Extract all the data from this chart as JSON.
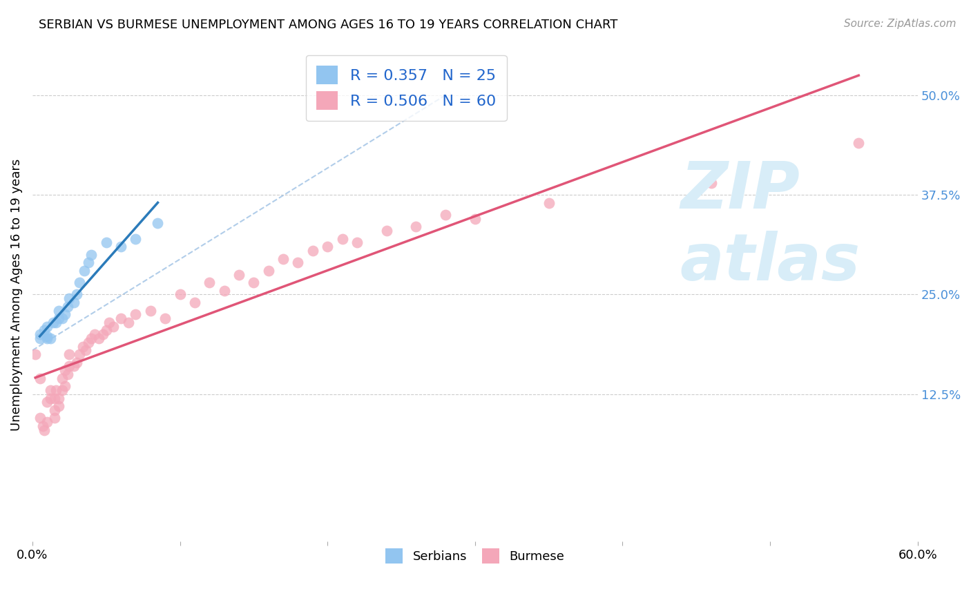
{
  "title": "SERBIAN VS BURMESE UNEMPLOYMENT AMONG AGES 16 TO 19 YEARS CORRELATION CHART",
  "source": "Source: ZipAtlas.com",
  "ylabel": "Unemployment Among Ages 16 to 19 years",
  "xlim": [
    0.0,
    0.6
  ],
  "ylim": [
    -0.06,
    0.56
  ],
  "x_tick_positions": [
    0.0,
    0.1,
    0.2,
    0.3,
    0.4,
    0.5,
    0.6
  ],
  "x_tick_labels": [
    "0.0%",
    "",
    "",
    "",
    "",
    "",
    "60.0%"
  ],
  "y_tick_vals_right": [
    0.5,
    0.375,
    0.25,
    0.125
  ],
  "y_tick_labels_right": [
    "50.0%",
    "37.5%",
    "25.0%",
    "12.5%"
  ],
  "serbian_R": 0.357,
  "serbian_N": 25,
  "burmese_R": 0.506,
  "burmese_N": 60,
  "serbian_color": "#92c5f0",
  "burmese_color": "#f4a7b9",
  "serbian_line_color": "#2b7bba",
  "burmese_line_color": "#e05577",
  "ref_line_color": "#90b8e0",
  "watermark_color": "#d8edf8",
  "serbian_x": [
    0.005,
    0.005,
    0.008,
    0.01,
    0.01,
    0.01,
    0.012,
    0.014,
    0.016,
    0.018,
    0.018,
    0.02,
    0.022,
    0.024,
    0.025,
    0.028,
    0.03,
    0.032,
    0.035,
    0.038,
    0.04,
    0.05,
    0.06,
    0.07,
    0.085
  ],
  "serbian_y": [
    0.195,
    0.2,
    0.205,
    0.195,
    0.198,
    0.21,
    0.195,
    0.215,
    0.215,
    0.22,
    0.23,
    0.22,
    0.225,
    0.235,
    0.245,
    0.24,
    0.25,
    0.265,
    0.28,
    0.29,
    0.3,
    0.315,
    0.31,
    0.32,
    0.34
  ],
  "burmese_x": [
    0.002,
    0.005,
    0.005,
    0.007,
    0.008,
    0.01,
    0.01,
    0.012,
    0.012,
    0.015,
    0.015,
    0.015,
    0.016,
    0.018,
    0.018,
    0.02,
    0.02,
    0.022,
    0.022,
    0.024,
    0.025,
    0.025,
    0.028,
    0.03,
    0.032,
    0.034,
    0.036,
    0.038,
    0.04,
    0.042,
    0.045,
    0.048,
    0.05,
    0.052,
    0.055,
    0.06,
    0.065,
    0.07,
    0.08,
    0.09,
    0.1,
    0.11,
    0.12,
    0.13,
    0.14,
    0.15,
    0.16,
    0.17,
    0.18,
    0.19,
    0.2,
    0.21,
    0.22,
    0.24,
    0.26,
    0.28,
    0.3,
    0.35,
    0.46,
    0.56
  ],
  "burmese_y": [
    0.175,
    0.145,
    0.095,
    0.085,
    0.08,
    0.09,
    0.115,
    0.12,
    0.13,
    0.095,
    0.105,
    0.12,
    0.13,
    0.11,
    0.12,
    0.13,
    0.145,
    0.135,
    0.155,
    0.15,
    0.16,
    0.175,
    0.16,
    0.165,
    0.175,
    0.185,
    0.18,
    0.19,
    0.195,
    0.2,
    0.195,
    0.2,
    0.205,
    0.215,
    0.21,
    0.22,
    0.215,
    0.225,
    0.23,
    0.22,
    0.25,
    0.24,
    0.265,
    0.255,
    0.275,
    0.265,
    0.28,
    0.295,
    0.29,
    0.305,
    0.31,
    0.32,
    0.315,
    0.33,
    0.335,
    0.35,
    0.345,
    0.365,
    0.39,
    0.44
  ]
}
